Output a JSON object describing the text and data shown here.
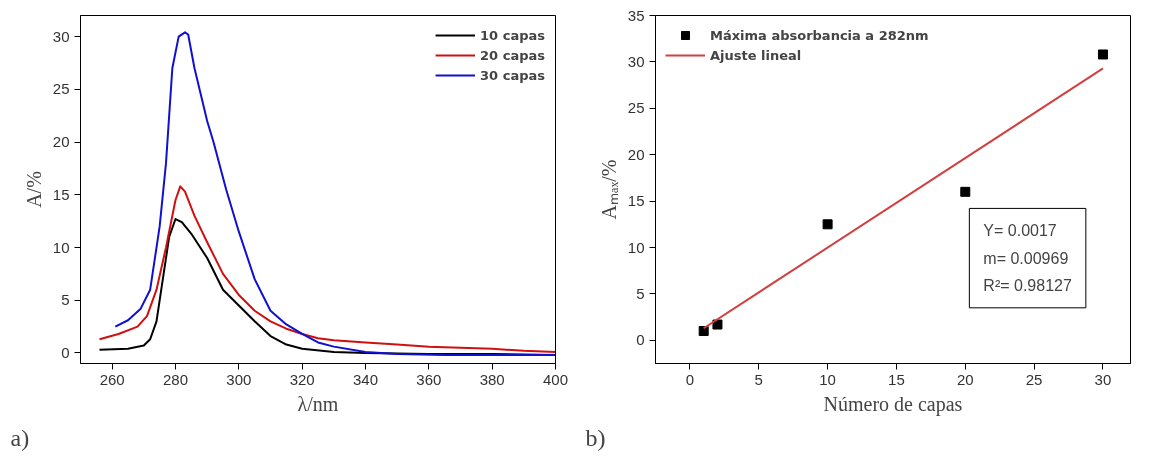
{
  "chart_data": [
    {
      "type": "line",
      "xlabel": "λ/nm",
      "ylabel": "A/%",
      "xlim": [
        250,
        400
      ],
      "ylim": [
        -1,
        32
      ],
      "xticks": [
        260,
        280,
        300,
        320,
        340,
        360,
        380,
        400
      ],
      "yticks": [
        0,
        5,
        10,
        15,
        20,
        25,
        30
      ],
      "grid": false,
      "legend": "top right",
      "annotations": [
        "a)"
      ],
      "series": [
        {
          "name": "10 capas",
          "color": "#000000",
          "x": [
            256,
            265,
            270,
            272,
            274,
            276,
            278,
            280,
            282,
            285,
            290,
            295,
            300,
            305,
            310,
            315,
            320,
            330,
            340,
            360,
            380,
            400
          ],
          "values": [
            0.3,
            0.4,
            0.7,
            1.3,
            3,
            7,
            11,
            12.7,
            12.4,
            11.3,
            9,
            6,
            4.5,
            3,
            1.6,
            0.8,
            0.4,
            0.1,
            0,
            -0.1,
            -0.1,
            -0.2
          ]
        },
        {
          "name": "20 capas",
          "color": "#d01010",
          "x": [
            256,
            262,
            268,
            271,
            274,
            277,
            280,
            281.5,
            283,
            286,
            290,
            295,
            300,
            305,
            310,
            315,
            320,
            325,
            330,
            340,
            350,
            360,
            370,
            380,
            390,
            400
          ],
          "values": [
            1.3,
            1.8,
            2.5,
            3.5,
            6,
            10,
            14.5,
            15.8,
            15.3,
            13,
            10.5,
            7.5,
            5.5,
            4,
            3,
            2.3,
            1.8,
            1.4,
            1.2,
            1.0,
            0.8,
            0.6,
            0.5,
            0.4,
            0.2,
            0.1
          ]
        },
        {
          "name": "30 capas",
          "color": "#1010d0",
          "x": [
            261,
            265,
            269,
            272,
            275,
            277,
            279,
            281,
            283,
            284,
            286,
            290,
            292,
            296,
            300,
            305,
            310,
            315,
            320,
            325,
            330,
            340,
            350,
            365,
            380,
            390,
            400
          ],
          "values": [
            2.5,
            3.1,
            4.2,
            6,
            12,
            18,
            27,
            30,
            30.4,
            30.2,
            27,
            22,
            20,
            15.5,
            11.5,
            7,
            4,
            2.7,
            1.8,
            1.0,
            0.6,
            0.1,
            -0.1,
            -0.2,
            -0.2,
            -0.2,
            -0.2
          ]
        }
      ]
    },
    {
      "type": "scatter",
      "xlabel": "Número de capas",
      "ylabel": "Aₘₐₓ/%",
      "xlim": [
        -2.5,
        32
      ],
      "ylim": [
        -2.5,
        35
      ],
      "xticks": [
        0,
        5,
        10,
        15,
        20,
        25,
        30
      ],
      "yticks": [
        0,
        5,
        10,
        15,
        20,
        25,
        30,
        35
      ],
      "grid": false,
      "legend": "top left",
      "annotations": [
        "b)",
        "Y= 0.0017",
        "m= 0.00969",
        "R²= 0.98127"
      ],
      "series": [
        {
          "name": "Máxima absorbancia a 282nm",
          "type": "scatter",
          "marker": "square",
          "color": "#000000",
          "x": [
            1,
            2,
            10,
            20,
            30
          ],
          "values": [
            1.0,
            1.7,
            12.5,
            16.0,
            30.8
          ]
        },
        {
          "name": "Ajuste lineal",
          "type": "line",
          "marker": "none",
          "color": "#d04040",
          "x": [
            1,
            30
          ],
          "values": [
            1.3,
            29.3
          ]
        }
      ]
    }
  ]
}
